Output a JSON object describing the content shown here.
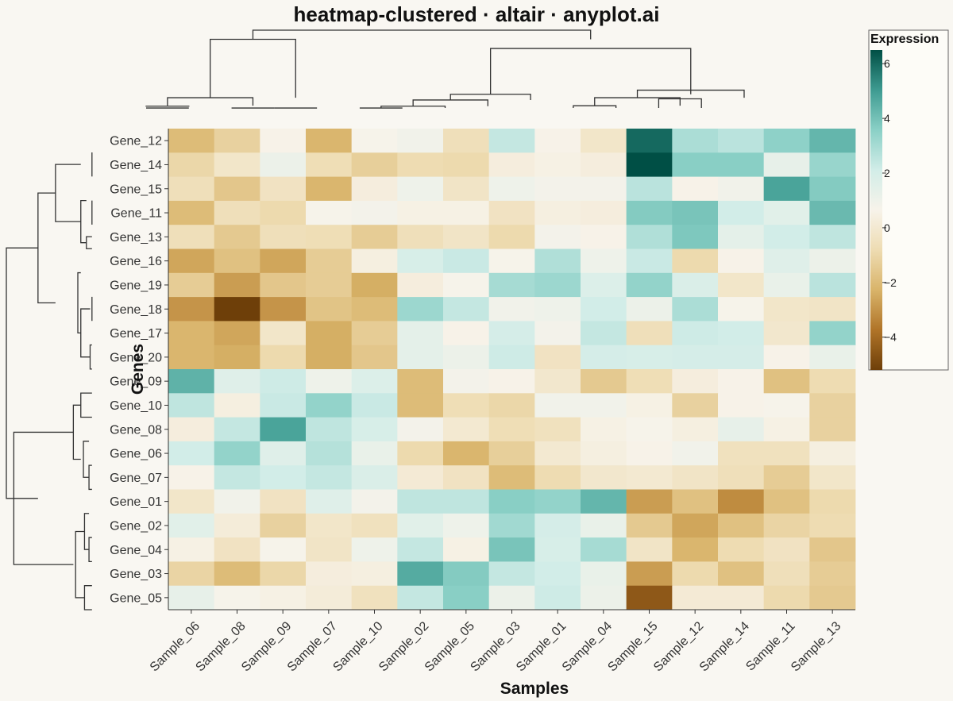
{
  "chart_data": {
    "type": "heatmap",
    "title": "heatmap-clustered · altair · anyplot.ai",
    "xlabel": "Samples",
    "ylabel": "Genes",
    "x_categories": [
      "Sample_06",
      "Sample_08",
      "Sample_09",
      "Sample_07",
      "Sample_10",
      "Sample_02",
      "Sample_05",
      "Sample_03",
      "Sample_01",
      "Sample_04",
      "Sample_15",
      "Sample_12",
      "Sample_14",
      "Sample_11",
      "Sample_13"
    ],
    "y_categories": [
      "Gene_12",
      "Gene_14",
      "Gene_15",
      "Gene_11",
      "Gene_13",
      "Gene_16",
      "Gene_19",
      "Gene_18",
      "Gene_17",
      "Gene_20",
      "Gene_09",
      "Gene_10",
      "Gene_08",
      "Gene_06",
      "Gene_07",
      "Gene_01",
      "Gene_02",
      "Gene_04",
      "Gene_03",
      "Gene_05"
    ],
    "values": [
      [
        -2.0,
        -1.2,
        0.6,
        -2.2,
        0.7,
        0.9,
        -0.6,
        2.4,
        0.6,
        -0.2,
        6.0,
        2.9,
        2.6,
        3.5,
        4.3
      ],
      [
        -1.0,
        -0.2,
        1.1,
        -0.7,
        -1.3,
        -0.8,
        -0.9,
        0.3,
        0.5,
        0.3,
        6.5,
        3.6,
        3.6,
        1.3,
        3.3
      ],
      [
        -0.6,
        -1.6,
        -0.4,
        -2.2,
        0.3,
        1.0,
        -0.3,
        1.0,
        0.8,
        0.8,
        2.6,
        0.6,
        0.9,
        4.8,
        3.7
      ],
      [
        -2.0,
        -0.6,
        -0.9,
        0.7,
        0.8,
        0.5,
        0.5,
        -0.4,
        0.4,
        0.3,
        3.7,
        3.9,
        2.1,
        1.5,
        4.2
      ],
      [
        -0.6,
        -1.5,
        -0.6,
        -0.7,
        -1.4,
        -0.6,
        -0.3,
        -0.9,
        0.8,
        0.6,
        2.8,
        3.8,
        1.4,
        2.1,
        2.5
      ],
      [
        -2.6,
        -1.8,
        -2.6,
        -1.4,
        0.4,
        1.9,
        2.3,
        0.7,
        2.8,
        1.0,
        2.3,
        -0.9,
        0.6,
        1.6,
        1.1
      ],
      [
        -1.4,
        -2.8,
        -1.6,
        -1.4,
        -2.4,
        0.3,
        0.7,
        3.0,
        3.2,
        1.7,
        3.4,
        1.8,
        -0.2,
        1.2,
        2.6
      ],
      [
        -3.0,
        -5.2,
        -3.0,
        -1.7,
        -2.0,
        3.2,
        2.4,
        0.9,
        1.0,
        2.1,
        1.1,
        2.9,
        0.7,
        -0.2,
        -0.3
      ],
      [
        -2.2,
        -2.6,
        -0.2,
        -2.4,
        -1.4,
        1.4,
        0.6,
        2.0,
        0.8,
        2.4,
        -0.6,
        2.2,
        2.1,
        -0.1,
        3.4
      ],
      [
        -2.2,
        -2.4,
        -0.9,
        -2.4,
        -1.6,
        1.4,
        1.1,
        2.2,
        -0.4,
        2.0,
        1.9,
        2.0,
        2.0,
        0.6,
        1.2
      ],
      [
        4.4,
        1.6,
        2.2,
        1.0,
        1.7,
        -2.0,
        0.8,
        0.6,
        -0.1,
        -1.5,
        -0.7,
        0.3,
        0.6,
        -1.8,
        -0.8
      ],
      [
        2.5,
        0.4,
        2.3,
        3.4,
        2.3,
        -2.0,
        -0.7,
        -1.0,
        0.9,
        0.9,
        0.5,
        -1.2,
        0.6,
        0.7,
        -1.2
      ],
      [
        0.3,
        2.4,
        4.8,
        2.5,
        1.9,
        0.8,
        0.0,
        -0.7,
        -0.5,
        0.5,
        0.7,
        0.4,
        1.3,
        0.5,
        -1.2
      ],
      [
        2.1,
        3.4,
        1.6,
        2.7,
        1.2,
        -0.9,
        -2.2,
        -1.3,
        0.0,
        0.4,
        0.6,
        0.9,
        -0.5,
        -0.5,
        0.4
      ],
      [
        0.6,
        2.4,
        2.1,
        2.4,
        1.8,
        0.1,
        -0.4,
        -2.0,
        -0.8,
        -0.1,
        0.0,
        -0.3,
        -0.6,
        -1.4,
        -0.2
      ],
      [
        -0.2,
        0.9,
        -0.4,
        1.6,
        0.8,
        2.5,
        2.5,
        3.6,
        3.4,
        4.3,
        -2.8,
        -1.8,
        -3.2,
        -1.8,
        -0.9
      ],
      [
        1.5,
        0.2,
        -1.2,
        -0.2,
        -0.5,
        1.5,
        1.0,
        3.1,
        2.0,
        1.2,
        -1.5,
        -2.6,
        -1.8,
        -1.1,
        -0.8
      ],
      [
        0.5,
        -0.4,
        0.7,
        -0.3,
        1.0,
        2.4,
        0.5,
        3.9,
        1.9,
        3.0,
        -0.3,
        -2.2,
        -0.8,
        -0.4,
        -1.6
      ],
      [
        -1.1,
        -2.0,
        -1.0,
        0.3,
        0.4,
        4.6,
        3.7,
        2.4,
        2.1,
        1.2,
        -2.8,
        -0.9,
        -1.8,
        -0.6,
        -1.4
      ],
      [
        1.3,
        0.7,
        0.5,
        0.2,
        -0.5,
        2.4,
        3.6,
        1.1,
        2.2,
        1.1,
        -4.5,
        0.1,
        0.1,
        -0.9,
        -1.5
      ]
    ],
    "color_scale": {
      "title": "Expression",
      "domain": [
        -5.2,
        6.5
      ],
      "ticks": [
        6,
        4,
        2,
        0,
        -2,
        -4
      ],
      "tick_labels": [
        "6",
        "4",
        "2",
        "0",
        "−2",
        "−4"
      ],
      "stops": [
        "#6e3f09",
        "#b07428",
        "#d9b46a",
        "#eedcb2",
        "#f7f3ea",
        "#d2ede8",
        "#8ad0c6",
        "#3e9b91",
        "#004f45"
      ]
    },
    "col_dendrogram": [
      [
        0,
        1,
        0.9,
        0.9
      ],
      [
        2,
        3,
        0.9,
        0.9
      ],
      [
        5,
        6,
        0.9,
        0.9
      ],
      [
        0,
        1,
        1.0,
        0.98
      ],
      [
        0.5,
        2.5,
        1.0,
        1.35
      ],
      [
        3,
        4,
        0.9,
        0.9
      ],
      [
        1.5,
        3.5,
        1.35,
        3.9
      ],
      [
        5.5,
        7,
        0.9,
        0.98
      ],
      [
        6.25,
        8,
        0.98,
        1.25
      ],
      [
        7.125,
        9,
        1.25,
        1.5
      ],
      [
        10,
        11,
        0.9,
        1.0
      ],
      [
        12,
        13,
        0.9,
        1.3
      ],
      [
        10.5,
        12.5,
        1.0,
        1.35
      ],
      [
        11.5,
        14,
        1.35,
        1.68
      ],
      [
        8.0625,
        12.75,
        1.5,
        3.5
      ],
      [
        2.5,
        10.406,
        3.9,
        4.3
      ]
    ],
    "row_dendrogram": [
      [
        0,
        1,
        0.9,
        0.9
      ],
      [
        2,
        3,
        0.9,
        0.9
      ],
      [
        3.5,
        4,
        0.9,
        1.05
      ],
      [
        2,
        3.75,
        1.05,
        1.2
      ],
      [
        0.5,
        2.875,
        1.2,
        1.88
      ],
      [
        6,
        7,
        0.9,
        0.9
      ],
      [
        8,
        9,
        0.9,
        0.95
      ],
      [
        6.5,
        8.5,
        0.95,
        1.2
      ],
      [
        5,
        7.5,
        1.2,
        1.28
      ],
      [
        1.6875,
        6.25,
        1.88,
        2.35
      ],
      [
        10,
        11,
        0.9,
        1.2
      ],
      [
        13,
        14,
        0.9,
        0.98
      ],
      [
        12,
        13.5,
        0.98,
        1.13
      ],
      [
        10.5,
        12.75,
        1.2,
        1.4
      ],
      [
        16,
        17,
        0.9,
        0.98
      ],
      [
        15,
        16.5,
        0.98,
        1.1
      ],
      [
        18,
        19,
        0.9,
        1.1
      ],
      [
        15.75,
        18.5,
        1.1,
        1.34
      ],
      [
        11.625,
        17.125,
        1.4,
        3.0
      ],
      [
        3.96875,
        14.375,
        2.35,
        3.2
      ]
    ]
  }
}
